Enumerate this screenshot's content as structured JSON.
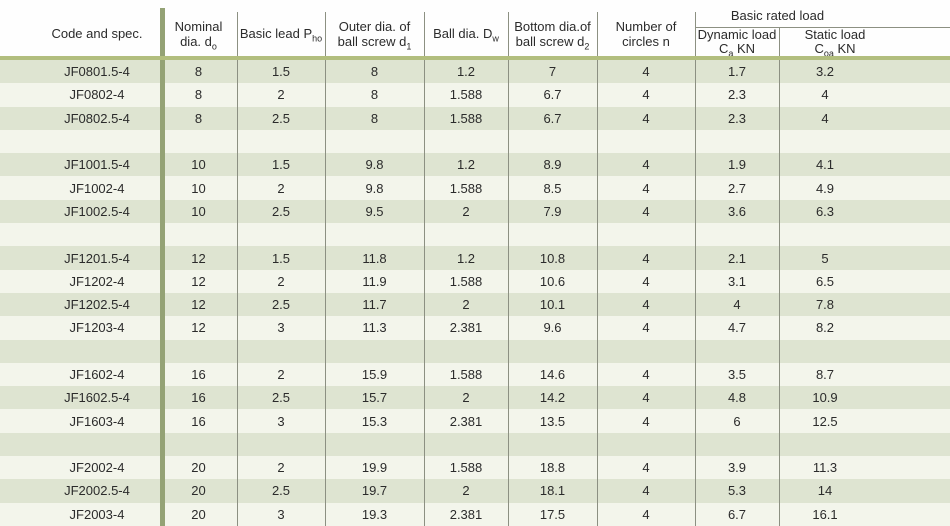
{
  "table": {
    "group": {
      "label": "Basic rated load"
    },
    "columns": [
      {
        "id": "code",
        "lines": [
          [
            {
              "t": "Code and spec."
            }
          ]
        ]
      },
      {
        "id": "nominal-dia",
        "lines": [
          [
            {
              "t": "Nominal"
            }
          ],
          [
            {
              "t": "dia. d"
            },
            {
              "t": "o",
              "sub": true
            }
          ]
        ]
      },
      {
        "id": "basic-lead",
        "lines": [
          [
            {
              "t": "Basic lead P"
            },
            {
              "t": "ho",
              "sub": true
            }
          ]
        ]
      },
      {
        "id": "outer-dia",
        "lines": [
          [
            {
              "t": "Outer dia. of"
            }
          ],
          [
            {
              "t": "ball screw d"
            },
            {
              "t": "1",
              "sub": true
            }
          ]
        ]
      },
      {
        "id": "ball-dia",
        "lines": [
          [
            {
              "t": "Ball dia. D"
            },
            {
              "t": "w",
              "sub": true
            }
          ]
        ]
      },
      {
        "id": "bottom-dia",
        "lines": [
          [
            {
              "t": "Bottom dia.of"
            }
          ],
          [
            {
              "t": "ball screw d"
            },
            {
              "t": "2",
              "sub": true
            }
          ]
        ]
      },
      {
        "id": "circles",
        "lines": [
          [
            {
              "t": "Number of"
            }
          ],
          [
            {
              "t": "circles n"
            }
          ]
        ]
      },
      {
        "id": "dynamic-load",
        "lines": [
          [
            {
              "t": "Dynamic load"
            }
          ],
          [
            {
              "t": "C"
            },
            {
              "t": "a",
              "sub": true
            },
            {
              "t": " KN"
            }
          ]
        ]
      },
      {
        "id": "static-load",
        "lines": [
          [
            {
              "t": "Static load"
            }
          ],
          [
            {
              "t": "C"
            },
            {
              "t": "oa",
              "sub": true
            },
            {
              "t": " KN"
            }
          ]
        ]
      }
    ],
    "rows": [
      {
        "cells": [
          "JF0801.5-4",
          "8",
          "1.5",
          "8",
          "1.2",
          "7",
          "4",
          "1.7",
          "3.2"
        ]
      },
      {
        "cells": [
          "JF0802-4",
          "8",
          "2",
          "8",
          "1.588",
          "6.7",
          "4",
          "2.3",
          "4"
        ]
      },
      {
        "cells": [
          "JF0802.5-4",
          "8",
          "2.5",
          "8",
          "1.588",
          "6.7",
          "4",
          "2.3",
          "4"
        ]
      },
      {
        "spacer": true
      },
      {
        "cells": [
          "JF1001.5-4",
          "10",
          "1.5",
          "9.8",
          "1.2",
          "8.9",
          "4",
          "1.9",
          "4.1"
        ]
      },
      {
        "cells": [
          "JF1002-4",
          "10",
          "2",
          "9.8",
          "1.588",
          "8.5",
          "4",
          "2.7",
          "4.9"
        ]
      },
      {
        "cells": [
          "JF1002.5-4",
          "10",
          "2.5",
          "9.5",
          "2",
          "7.9",
          "4",
          "3.6",
          "6.3"
        ]
      },
      {
        "spacer": true
      },
      {
        "cells": [
          "JF1201.5-4",
          "12",
          "1.5",
          "11.8",
          "1.2",
          "10.8",
          "4",
          "2.1",
          "5"
        ]
      },
      {
        "cells": [
          "JF1202-4",
          "12",
          "2",
          "11.9",
          "1.588",
          "10.6",
          "4",
          "3.1",
          "6.5"
        ]
      },
      {
        "cells": [
          "JF1202.5-4",
          "12",
          "2.5",
          "11.7",
          "2",
          "10.1",
          "4",
          "4",
          "7.8"
        ]
      },
      {
        "cells": [
          "JF1203-4",
          "12",
          "3",
          "11.3",
          "2.381",
          "9.6",
          "4",
          "4.7",
          "8.2"
        ]
      },
      {
        "spacer": true
      },
      {
        "cells": [
          "JF1602-4",
          "16",
          "2",
          "15.9",
          "1.588",
          "14.6",
          "4",
          "3.5",
          "8.7"
        ]
      },
      {
        "cells": [
          "JF1602.5-4",
          "16",
          "2.5",
          "15.7",
          "2",
          "14.2",
          "4",
          "4.8",
          "10.9"
        ]
      },
      {
        "cells": [
          "JF1603-4",
          "16",
          "3",
          "15.3",
          "2.381",
          "13.5",
          "4",
          "6",
          "12.5"
        ]
      },
      {
        "spacer": true
      },
      {
        "cells": [
          "JF2002-4",
          "20",
          "2",
          "19.9",
          "1.588",
          "18.8",
          "4",
          "3.9",
          "11.3"
        ]
      },
      {
        "cells": [
          "JF2002.5-4",
          "20",
          "2.5",
          "19.7",
          "2",
          "18.1",
          "4",
          "5.3",
          "14"
        ]
      },
      {
        "cells": [
          "JF2003-4",
          "20",
          "3",
          "19.3",
          "2.381",
          "17.5",
          "4",
          "6.7",
          "16.1"
        ]
      }
    ]
  },
  "colors": {
    "row_shaded": "#dee4d1",
    "row_light": "#f3f5eb",
    "band": "#b2be7e",
    "thick_line": "#94a275",
    "thin_line": "#8c9082",
    "text": "#2b2b2b"
  }
}
